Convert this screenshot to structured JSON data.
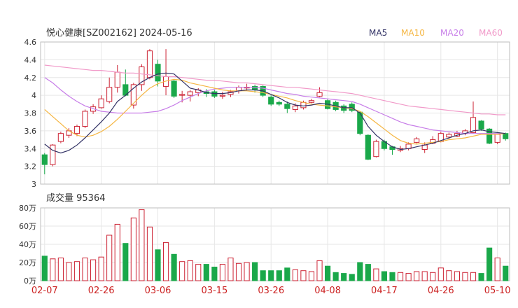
{
  "header": {
    "title": "悦心健康[SZ002162] 2024-05-16",
    "legend": [
      {
        "label": "MA5",
        "color": "#333366"
      },
      {
        "label": "MA10",
        "color": "#f5b642"
      },
      {
        "label": "MA20",
        "color": "#c77de8"
      },
      {
        "label": "MA60",
        "color": "#f19ac9"
      }
    ]
  },
  "volume_label": "成交量 95364",
  "chart_data": [
    {
      "type": "candlestick",
      "y_ticks": [
        "4.6",
        "4.4",
        "4.2",
        "4",
        "3.8",
        "3.6",
        "3.4",
        "3.2",
        "3"
      ],
      "ylim": [
        3.0,
        4.6
      ],
      "x_tick_labels": [
        "02-07",
        "02-26",
        "03-06",
        "03-15",
        "03-26",
        "04-08",
        "04-17",
        "04-26",
        "05-10"
      ],
      "x_tick_indices": [
        0,
        7,
        14,
        21,
        28,
        35,
        42,
        49,
        56
      ],
      "up_color": "#cc2233",
      "down_color": "#1aa84a",
      "candles": [
        [
          3.33,
          3.22,
          3.35,
          3.11
        ],
        [
          3.22,
          3.44,
          3.45,
          3.2
        ],
        [
          3.48,
          3.57,
          3.59,
          3.46
        ],
        [
          3.55,
          3.6,
          3.63,
          3.52
        ],
        [
          3.57,
          3.65,
          3.67,
          3.54
        ],
        [
          3.65,
          3.82,
          3.84,
          3.63
        ],
        [
          3.82,
          3.87,
          3.9,
          3.79
        ],
        [
          3.86,
          3.96,
          4.0,
          3.85
        ],
        [
          3.93,
          4.09,
          4.2,
          3.91
        ],
        [
          4.09,
          4.26,
          4.34,
          4.03
        ],
        [
          4.12,
          4.0,
          4.29,
          3.99
        ],
        [
          3.89,
          4.12,
          4.14,
          3.85
        ],
        [
          4.12,
          4.32,
          4.35,
          4.05
        ],
        [
          4.2,
          4.5,
          4.52,
          4.18
        ],
        [
          4.35,
          4.16,
          4.4,
          4.1
        ],
        [
          4.1,
          4.21,
          4.52,
          4.0
        ],
        [
          4.16,
          3.99,
          4.18,
          3.97
        ],
        [
          4.0,
          4.01,
          4.05,
          3.92
        ],
        [
          4.0,
          4.04,
          4.06,
          3.93
        ],
        [
          4.03,
          4.06,
          4.08,
          3.99
        ],
        [
          4.04,
          4.02,
          4.07,
          3.98
        ],
        [
          4.04,
          3.99,
          4.06,
          3.97
        ],
        [
          3.99,
          4.0,
          4.04,
          3.96
        ],
        [
          4.01,
          4.04,
          4.06,
          3.98
        ],
        [
          4.05,
          4.09,
          4.11,
          4.02
        ],
        [
          4.09,
          4.09,
          4.13,
          4.05
        ],
        [
          4.1,
          4.06,
          4.12,
          4.03
        ],
        [
          4.1,
          4.0,
          4.11,
          3.98
        ],
        [
          3.98,
          3.9,
          4.0,
          3.88
        ],
        [
          3.92,
          3.9,
          3.94,
          3.88
        ],
        [
          3.9,
          3.85,
          3.93,
          3.8
        ],
        [
          3.84,
          3.88,
          3.91,
          3.81
        ],
        [
          3.86,
          3.92,
          3.94,
          3.84
        ],
        [
          3.92,
          3.94,
          3.96,
          3.91
        ],
        [
          3.99,
          4.03,
          4.09,
          3.98
        ],
        [
          3.94,
          3.85,
          3.96,
          3.84
        ],
        [
          3.92,
          3.84,
          3.94,
          3.82
        ],
        [
          3.88,
          3.83,
          3.9,
          3.8
        ],
        [
          3.9,
          3.83,
          3.92,
          3.81
        ],
        [
          3.81,
          3.57,
          3.82,
          3.55
        ],
        [
          3.55,
          3.28,
          3.56,
          3.27
        ],
        [
          3.31,
          3.48,
          3.5,
          3.3
        ],
        [
          3.48,
          3.4,
          3.5,
          3.38
        ],
        [
          3.42,
          3.39,
          3.43,
          3.33
        ],
        [
          3.38,
          3.4,
          3.43,
          3.36
        ],
        [
          3.4,
          3.45,
          3.47,
          3.38
        ],
        [
          3.47,
          3.51,
          3.53,
          3.46
        ],
        [
          3.39,
          3.44,
          3.47,
          3.35
        ],
        [
          3.46,
          3.5,
          3.54,
          3.45
        ],
        [
          3.48,
          3.57,
          3.59,
          3.47
        ],
        [
          3.53,
          3.56,
          3.58,
          3.51
        ],
        [
          3.54,
          3.57,
          3.6,
          3.53
        ],
        [
          3.57,
          3.6,
          3.62,
          3.55
        ],
        [
          3.58,
          3.75,
          3.93,
          3.57
        ],
        [
          3.71,
          3.62,
          3.72,
          3.6
        ],
        [
          3.62,
          3.46,
          3.63,
          3.45
        ],
        [
          3.47,
          3.56,
          3.57,
          3.45
        ],
        [
          3.57,
          3.51,
          3.58,
          3.49
        ]
      ],
      "ma5": [
        3.45,
        3.38,
        3.35,
        3.38,
        3.44,
        3.52,
        3.61,
        3.7,
        3.8,
        3.93,
        4.0,
        4.08,
        4.15,
        4.2,
        4.24,
        4.25,
        4.24,
        4.16,
        4.08,
        4.06,
        4.03,
        4.02,
        4.02,
        4.03,
        4.05,
        4.06,
        4.06,
        4.05,
        4.01,
        3.97,
        3.92,
        3.89,
        3.88,
        3.89,
        3.91,
        3.9,
        3.88,
        3.86,
        3.86,
        3.8,
        3.65,
        3.55,
        3.48,
        3.42,
        3.39,
        3.4,
        3.42,
        3.44,
        3.46,
        3.49,
        3.52,
        3.55,
        3.57,
        3.6,
        3.61,
        3.59,
        3.58,
        3.57
      ],
      "ma10": [
        3.84,
        3.76,
        3.68,
        3.6,
        3.55,
        3.53,
        3.55,
        3.59,
        3.65,
        3.73,
        3.82,
        3.91,
        4.0,
        4.08,
        4.13,
        4.16,
        4.18,
        4.17,
        4.14,
        4.12,
        4.1,
        4.08,
        4.06,
        4.05,
        4.05,
        4.05,
        4.04,
        4.03,
        4.01,
        3.99,
        3.97,
        3.94,
        3.92,
        3.9,
        3.89,
        3.88,
        3.87,
        3.86,
        3.85,
        3.82,
        3.76,
        3.69,
        3.62,
        3.55,
        3.49,
        3.46,
        3.45,
        3.46,
        3.47,
        3.48,
        3.5,
        3.51,
        3.52,
        3.54,
        3.56,
        3.56,
        3.56,
        3.57
      ],
      "ma20": [
        4.2,
        4.14,
        4.06,
        3.99,
        3.93,
        3.88,
        3.85,
        3.82,
        3.81,
        3.8,
        3.8,
        3.8,
        3.8,
        3.81,
        3.82,
        3.85,
        3.89,
        3.94,
        3.98,
        4.02,
        4.05,
        4.07,
        4.08,
        4.09,
        4.09,
        4.09,
        4.09,
        4.08,
        4.06,
        4.04,
        4.02,
        4.01,
        3.99,
        3.98,
        3.97,
        3.96,
        3.95,
        3.94,
        3.93,
        3.9,
        3.86,
        3.82,
        3.78,
        3.74,
        3.7,
        3.67,
        3.65,
        3.63,
        3.61,
        3.6,
        3.59,
        3.58,
        3.57,
        3.57,
        3.57,
        3.57,
        3.57,
        3.57
      ],
      "ma60": [
        4.34,
        4.33,
        4.32,
        4.31,
        4.3,
        4.29,
        4.28,
        4.28,
        4.27,
        4.26,
        4.25,
        4.25,
        4.24,
        4.23,
        4.22,
        4.21,
        4.21,
        4.2,
        4.19,
        4.18,
        4.17,
        4.17,
        4.16,
        4.15,
        4.14,
        4.14,
        4.13,
        4.12,
        4.11,
        4.1,
        4.09,
        4.09,
        4.08,
        4.07,
        4.06,
        4.05,
        4.04,
        4.03,
        4.02,
        4.0,
        3.98,
        3.96,
        3.94,
        3.92,
        3.9,
        3.88,
        3.87,
        3.86,
        3.85,
        3.84,
        3.83,
        3.82,
        3.81,
        3.8,
        3.79,
        3.79,
        3.78,
        3.78
      ]
    },
    {
      "type": "bar",
      "title": "成交量 95364",
      "y_ticks": [
        "80万",
        "60万",
        "40万",
        "20万",
        "0万"
      ],
      "ylim": [
        0,
        800000
      ],
      "values": [
        270000,
        240000,
        250000,
        200000,
        210000,
        250000,
        230000,
        260000,
        500000,
        620000,
        410000,
        690000,
        780000,
        590000,
        340000,
        420000,
        290000,
        210000,
        220000,
        180000,
        180000,
        150000,
        180000,
        250000,
        190000,
        200000,
        200000,
        110000,
        110000,
        110000,
        140000,
        120000,
        110000,
        100000,
        220000,
        160000,
        90000,
        80000,
        70000,
        200000,
        180000,
        130000,
        100000,
        90000,
        90000,
        80000,
        100000,
        100000,
        90000,
        140000,
        110000,
        100000,
        90000,
        90000,
        80000,
        360000,
        250000,
        160000
      ]
    }
  ]
}
